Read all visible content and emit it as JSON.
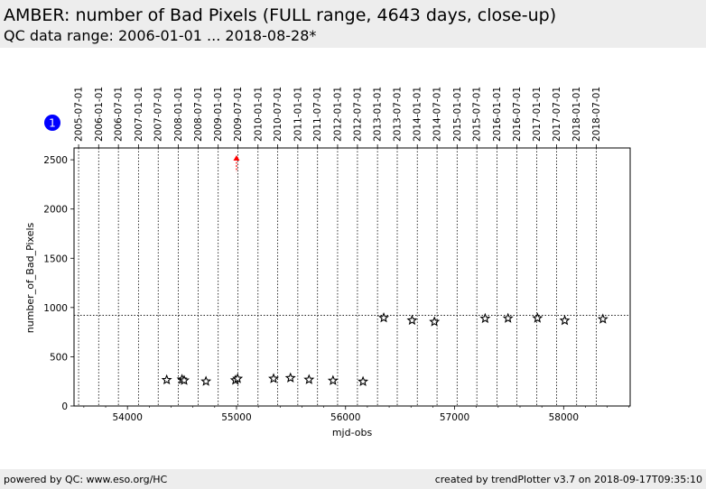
{
  "header": {
    "title": "AMBER: number of Bad Pixels (FULL range, 4643 days, close-up)",
    "subtitle": "QC data range: 2006-01-01 ... 2018-08-28*"
  },
  "footer": {
    "left": "powered by QC: www.eso.org/HC",
    "right": "created by trendPlotter v3.7 on 2018-09-17T09:35:10"
  },
  "badge": {
    "label": "1",
    "color": "#0000ff"
  },
  "chart_data": {
    "type": "scatter",
    "xlabel": "mjd-obs",
    "ylabel": "number_of_Bad_Pixels",
    "xlim": [
      53510,
      58610
    ],
    "ylim": [
      0,
      2620
    ],
    "x_ticks": [
      54000,
      55000,
      56000,
      57000,
      58000
    ],
    "y_ticks": [
      0,
      500,
      1000,
      1500,
      2000,
      2500
    ],
    "date_ticks": [
      {
        "label": "2005-07-01",
        "mjd": 53552
      },
      {
        "label": "2006-01-01",
        "mjd": 53736
      },
      {
        "label": "2006-07-01",
        "mjd": 53917
      },
      {
        "label": "2007-01-01",
        "mjd": 54101
      },
      {
        "label": "2007-07-01",
        "mjd": 54282
      },
      {
        "label": "2008-01-01",
        "mjd": 54466
      },
      {
        "label": "2008-07-01",
        "mjd": 54648
      },
      {
        "label": "2009-01-01",
        "mjd": 54832
      },
      {
        "label": "2009-07-01",
        "mjd": 55013
      },
      {
        "label": "2010-01-01",
        "mjd": 55197
      },
      {
        "label": "2010-07-01",
        "mjd": 55378
      },
      {
        "label": "2011-01-01",
        "mjd": 55562
      },
      {
        "label": "2011-07-01",
        "mjd": 55743
      },
      {
        "label": "2012-01-01",
        "mjd": 55927
      },
      {
        "label": "2012-07-01",
        "mjd": 56109
      },
      {
        "label": "2013-01-01",
        "mjd": 56293
      },
      {
        "label": "2013-07-01",
        "mjd": 56474
      },
      {
        "label": "2014-01-01",
        "mjd": 56658
      },
      {
        "label": "2014-07-01",
        "mjd": 56839
      },
      {
        "label": "2015-01-01",
        "mjd": 57023
      },
      {
        "label": "2015-07-01",
        "mjd": 57204
      },
      {
        "label": "2016-01-01",
        "mjd": 57388
      },
      {
        "label": "2016-07-01",
        "mjd": 57570
      },
      {
        "label": "2017-01-01",
        "mjd": 57754
      },
      {
        "label": "2017-07-01",
        "mjd": 57935
      },
      {
        "label": "2018-01-01",
        "mjd": 58119
      },
      {
        "label": "2018-07-01",
        "mjd": 58300
      }
    ],
    "reference_line": 920,
    "series": [
      {
        "marker": "star",
        "color": "#000000",
        "points": [
          {
            "x": 54360,
            "y": 265
          },
          {
            "x": 54500,
            "y": 270
          },
          {
            "x": 54520,
            "y": 260
          },
          {
            "x": 54720,
            "y": 250
          },
          {
            "x": 54990,
            "y": 262
          },
          {
            "x": 55010,
            "y": 278
          },
          {
            "x": 55340,
            "y": 278
          },
          {
            "x": 55495,
            "y": 285
          },
          {
            "x": 55665,
            "y": 268
          },
          {
            "x": 55885,
            "y": 258
          },
          {
            "x": 56160,
            "y": 248
          },
          {
            "x": 56350,
            "y": 895
          },
          {
            "x": 56610,
            "y": 870
          },
          {
            "x": 56815,
            "y": 855
          },
          {
            "x": 57280,
            "y": 888
          },
          {
            "x": 57490,
            "y": 890
          },
          {
            "x": 57760,
            "y": 892
          },
          {
            "x": 58010,
            "y": 868
          },
          {
            "x": 58360,
            "y": 882
          }
        ]
      }
    ],
    "outliers": [
      {
        "x": 55000,
        "y_low": 2380,
        "note": "off-scale high",
        "color": "#ff0000"
      }
    ]
  }
}
